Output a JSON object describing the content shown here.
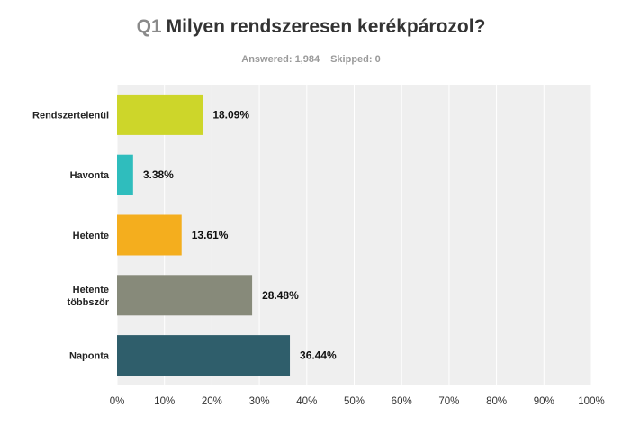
{
  "question": {
    "number": "Q1",
    "text": "Milyen rendszeresen kerékpározol?"
  },
  "stats": {
    "answered_label": "Answered:",
    "answered_value": "1,984",
    "skipped_label": "Skipped:",
    "skipped_value": "0"
  },
  "chart_data": {
    "type": "bar",
    "orientation": "horizontal",
    "categories": [
      [
        "Rendszertelenül"
      ],
      [
        "Havonta"
      ],
      [
        "Hetente"
      ],
      [
        "Hetente",
        "többször"
      ],
      [
        "Naponta"
      ]
    ],
    "values": [
      18.09,
      3.38,
      13.61,
      28.48,
      36.44
    ],
    "value_labels": [
      "18.09%",
      "3.38%",
      "13.61%",
      "28.48%",
      "36.44%"
    ],
    "colors": [
      "#cdd62a",
      "#2fbdbd",
      "#f4ae1e",
      "#878a7a",
      "#2f5e6b"
    ],
    "xlim": [
      0,
      100
    ],
    "xticks": [
      "0%",
      "10%",
      "20%",
      "30%",
      "40%",
      "50%",
      "60%",
      "70%",
      "80%",
      "90%",
      "100%"
    ],
    "grid": true,
    "legend": "none"
  }
}
